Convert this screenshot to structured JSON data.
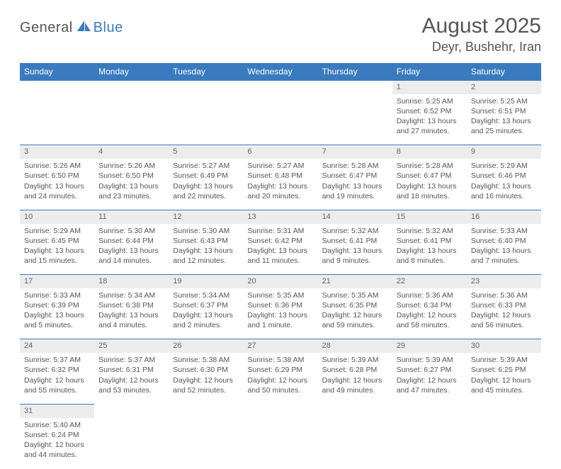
{
  "logo": {
    "part1": "General",
    "part2": "Blue"
  },
  "title": "August 2025",
  "location": "Deyr, Bushehr, Iran",
  "colors": {
    "header_bg": "#3a7bbf",
    "header_text": "#ffffff",
    "daynum_bg": "#ececec",
    "row_border": "#3a7bbf",
    "body_text": "#555555",
    "page_bg": "#ffffff"
  },
  "font": {
    "family": "Arial",
    "title_size": 30,
    "location_size": 18,
    "header_size": 12,
    "cell_size": 10.5
  },
  "weekdays": [
    "Sunday",
    "Monday",
    "Tuesday",
    "Wednesday",
    "Thursday",
    "Friday",
    "Saturday"
  ],
  "weeks": [
    [
      null,
      null,
      null,
      null,
      null,
      {
        "n": "1",
        "sr": "Sunrise: 5:25 AM",
        "ss": "Sunset: 6:52 PM",
        "dl": "Daylight: 13 hours and 27 minutes."
      },
      {
        "n": "2",
        "sr": "Sunrise: 5:25 AM",
        "ss": "Sunset: 6:51 PM",
        "dl": "Daylight: 13 hours and 25 minutes."
      }
    ],
    [
      {
        "n": "3",
        "sr": "Sunrise: 5:26 AM",
        "ss": "Sunset: 6:50 PM",
        "dl": "Daylight: 13 hours and 24 minutes."
      },
      {
        "n": "4",
        "sr": "Sunrise: 5:26 AM",
        "ss": "Sunset: 6:50 PM",
        "dl": "Daylight: 13 hours and 23 minutes."
      },
      {
        "n": "5",
        "sr": "Sunrise: 5:27 AM",
        "ss": "Sunset: 6:49 PM",
        "dl": "Daylight: 13 hours and 22 minutes."
      },
      {
        "n": "6",
        "sr": "Sunrise: 5:27 AM",
        "ss": "Sunset: 6:48 PM",
        "dl": "Daylight: 13 hours and 20 minutes."
      },
      {
        "n": "7",
        "sr": "Sunrise: 5:28 AM",
        "ss": "Sunset: 6:47 PM",
        "dl": "Daylight: 13 hours and 19 minutes."
      },
      {
        "n": "8",
        "sr": "Sunrise: 5:28 AM",
        "ss": "Sunset: 6:47 PM",
        "dl": "Daylight: 13 hours and 18 minutes."
      },
      {
        "n": "9",
        "sr": "Sunrise: 5:29 AM",
        "ss": "Sunset: 6:46 PM",
        "dl": "Daylight: 13 hours and 16 minutes."
      }
    ],
    [
      {
        "n": "10",
        "sr": "Sunrise: 5:29 AM",
        "ss": "Sunset: 6:45 PM",
        "dl": "Daylight: 13 hours and 15 minutes."
      },
      {
        "n": "11",
        "sr": "Sunrise: 5:30 AM",
        "ss": "Sunset: 6:44 PM",
        "dl": "Daylight: 13 hours and 14 minutes."
      },
      {
        "n": "12",
        "sr": "Sunrise: 5:30 AM",
        "ss": "Sunset: 6:43 PM",
        "dl": "Daylight: 13 hours and 12 minutes."
      },
      {
        "n": "13",
        "sr": "Sunrise: 5:31 AM",
        "ss": "Sunset: 6:42 PM",
        "dl": "Daylight: 13 hours and 11 minutes."
      },
      {
        "n": "14",
        "sr": "Sunrise: 5:32 AM",
        "ss": "Sunset: 6:41 PM",
        "dl": "Daylight: 13 hours and 9 minutes."
      },
      {
        "n": "15",
        "sr": "Sunrise: 5:32 AM",
        "ss": "Sunset: 6:41 PM",
        "dl": "Daylight: 13 hours and 8 minutes."
      },
      {
        "n": "16",
        "sr": "Sunrise: 5:33 AM",
        "ss": "Sunset: 6:40 PM",
        "dl": "Daylight: 13 hours and 7 minutes."
      }
    ],
    [
      {
        "n": "17",
        "sr": "Sunrise: 5:33 AM",
        "ss": "Sunset: 6:39 PM",
        "dl": "Daylight: 13 hours and 5 minutes."
      },
      {
        "n": "18",
        "sr": "Sunrise: 5:34 AM",
        "ss": "Sunset: 6:38 PM",
        "dl": "Daylight: 13 hours and 4 minutes."
      },
      {
        "n": "19",
        "sr": "Sunrise: 5:34 AM",
        "ss": "Sunset: 6:37 PM",
        "dl": "Daylight: 13 hours and 2 minutes."
      },
      {
        "n": "20",
        "sr": "Sunrise: 5:35 AM",
        "ss": "Sunset: 6:36 PM",
        "dl": "Daylight: 13 hours and 1 minute."
      },
      {
        "n": "21",
        "sr": "Sunrise: 5:35 AM",
        "ss": "Sunset: 6:35 PM",
        "dl": "Daylight: 12 hours and 59 minutes."
      },
      {
        "n": "22",
        "sr": "Sunrise: 5:36 AM",
        "ss": "Sunset: 6:34 PM",
        "dl": "Daylight: 12 hours and 58 minutes."
      },
      {
        "n": "23",
        "sr": "Sunrise: 5:36 AM",
        "ss": "Sunset: 6:33 PM",
        "dl": "Daylight: 12 hours and 56 minutes."
      }
    ],
    [
      {
        "n": "24",
        "sr": "Sunrise: 5:37 AM",
        "ss": "Sunset: 6:32 PM",
        "dl": "Daylight: 12 hours and 55 minutes."
      },
      {
        "n": "25",
        "sr": "Sunrise: 5:37 AM",
        "ss": "Sunset: 6:31 PM",
        "dl": "Daylight: 12 hours and 53 minutes."
      },
      {
        "n": "26",
        "sr": "Sunrise: 5:38 AM",
        "ss": "Sunset: 6:30 PM",
        "dl": "Daylight: 12 hours and 52 minutes."
      },
      {
        "n": "27",
        "sr": "Sunrise: 5:38 AM",
        "ss": "Sunset: 6:29 PM",
        "dl": "Daylight: 12 hours and 50 minutes."
      },
      {
        "n": "28",
        "sr": "Sunrise: 5:39 AM",
        "ss": "Sunset: 6:28 PM",
        "dl": "Daylight: 12 hours and 49 minutes."
      },
      {
        "n": "29",
        "sr": "Sunrise: 5:39 AM",
        "ss": "Sunset: 6:27 PM",
        "dl": "Daylight: 12 hours and 47 minutes."
      },
      {
        "n": "30",
        "sr": "Sunrise: 5:39 AM",
        "ss": "Sunset: 6:25 PM",
        "dl": "Daylight: 12 hours and 45 minutes."
      }
    ],
    [
      {
        "n": "31",
        "sr": "Sunrise: 5:40 AM",
        "ss": "Sunset: 6:24 PM",
        "dl": "Daylight: 12 hours and 44 minutes."
      },
      null,
      null,
      null,
      null,
      null,
      null
    ]
  ]
}
